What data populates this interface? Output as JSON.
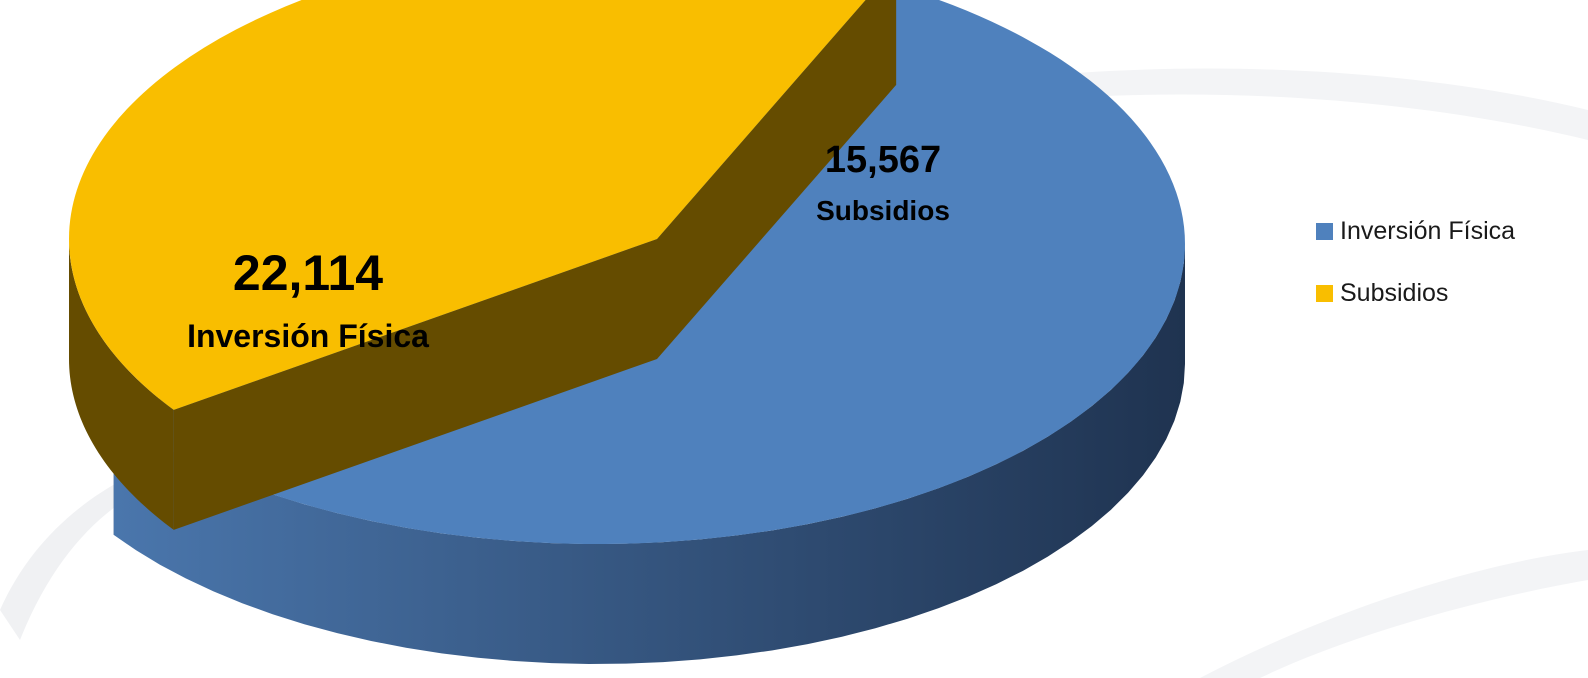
{
  "chart_data": {
    "type": "pie",
    "slices": [
      {
        "name": "Inversión Física",
        "value": 22114,
        "value_label": "22,114",
        "color": "#4f81bd",
        "side_color": "#2c4669"
      },
      {
        "name": "Subsidios",
        "value": 15567,
        "value_label": "15,567",
        "color": "#f9be00",
        "side_color": "#654c00",
        "exploded": true
      }
    ],
    "legend": {
      "placement": "right",
      "items": [
        {
          "label": "Inversión Física",
          "color": "#4f81bd"
        },
        {
          "label": "Subsidios",
          "color": "#f9be00"
        }
      ]
    },
    "three_d": true
  }
}
